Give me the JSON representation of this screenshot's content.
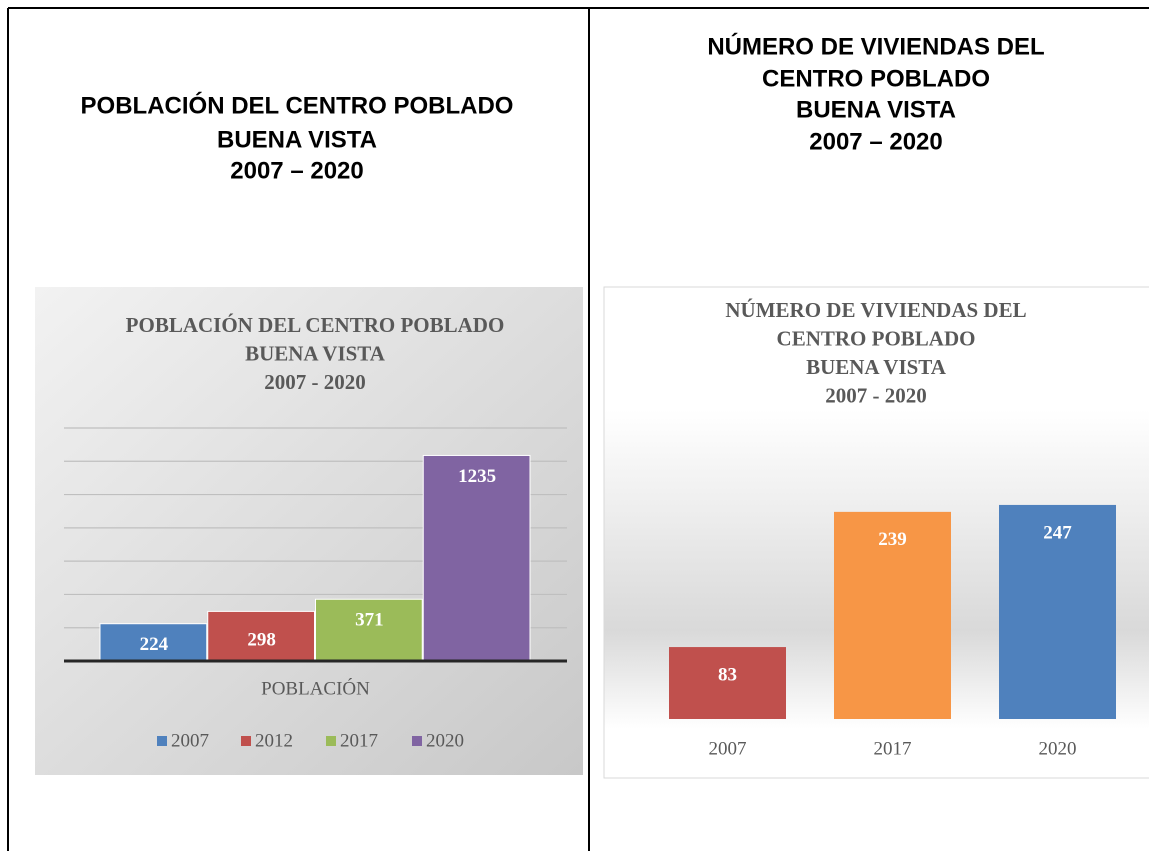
{
  "headings": [
    [
      "POBLACIÓN DEL CENTRO POBLADO",
      "BUENA VISTA",
      "2007 – 2020"
    ],
    [
      "NÚMERO DE VIVIENDAS DEL",
      "CENTRO POBLADO",
      "BUENA VISTA",
      "2007 – 2020"
    ]
  ],
  "chart_data": [
    {
      "type": "bar",
      "title": [
        "POBLACIÓN DEL CENTRO POBLADO",
        "BUENA VISTA",
        "2007 - 2020"
      ],
      "categories": [
        "POBLACIÓN"
      ],
      "series": [
        {
          "name": "2007",
          "color": "#4f81bd",
          "values": [
            224
          ]
        },
        {
          "name": "2012",
          "color": "#c0504d",
          "values": [
            298
          ]
        },
        {
          "name": "2017",
          "color": "#9bbb59",
          "values": [
            371
          ]
        },
        {
          "name": "2020",
          "color": "#8064a2",
          "values": [
            1235
          ]
        }
      ],
      "ylim": [
        0,
        1400
      ],
      "yticks": [
        0,
        200,
        400,
        600,
        800,
        1000,
        1200,
        1400
      ],
      "grid": true,
      "legend": "bottom"
    },
    {
      "type": "bar",
      "title": [
        "NÚMERO DE VIVIENDAS DEL",
        "CENTRO POBLADO",
        "BUENA VISTA",
        "2007 - 2020"
      ],
      "categories": [
        "2007",
        "2017",
        "2020"
      ],
      "values": [
        83,
        239,
        247
      ],
      "colors": [
        "#c0504d",
        "#f79646",
        "#4f81bd"
      ],
      "ylim": [
        0,
        300
      ],
      "grid": false
    }
  ]
}
